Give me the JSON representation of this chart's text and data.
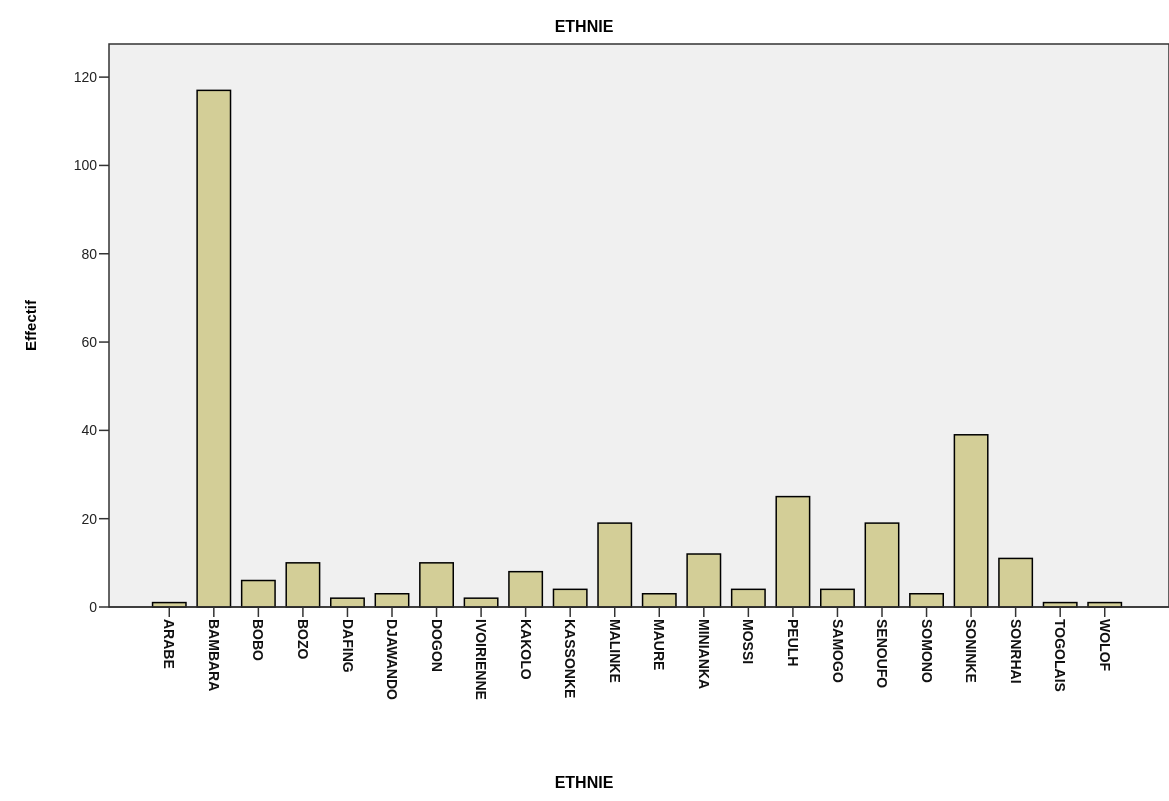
{
  "chart_data": {
    "type": "bar",
    "title": "ETHNIE",
    "xlabel": "ETHNIE",
    "ylabel": "Effectif",
    "categories": [
      "ARABE",
      "BAMBARA",
      "BOBO",
      "BOZO",
      "DAFING",
      "DJAWANDO",
      "DOGON",
      "IVOIRIENNE",
      "KAKOLO",
      "KASSONKE",
      "MALINKE",
      "MAURE",
      "MINIANKA",
      "MOSSI",
      "PEULH",
      "SAMOGO",
      "SENOUFO",
      "SOMONO",
      "SONINKE",
      "SONRHAI",
      "TOGOLAIS",
      "WOLOF"
    ],
    "values": [
      1,
      117,
      6,
      10,
      2,
      3,
      10,
      2,
      8,
      4,
      19,
      3,
      12,
      4,
      25,
      4,
      19,
      3,
      39,
      11,
      1,
      1
    ],
    "color": "#d3ce97",
    "ylim": [
      0,
      127.5
    ],
    "yticks": [
      0,
      20,
      40,
      60,
      80,
      100,
      120
    ],
    "grid": false
  }
}
